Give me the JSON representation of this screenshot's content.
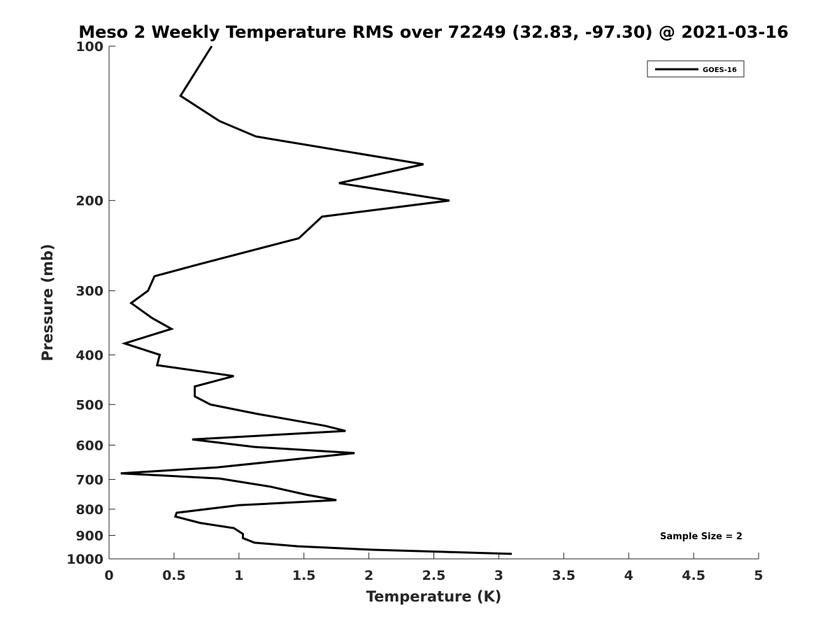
{
  "chart_data": {
    "type": "line",
    "title": "Meso 2 Weekly Temperature RMS over 72249 (32.83, -97.30) @ 2021-03-16",
    "xlabel": "Temperature (K)",
    "ylabel": "Pressure (mb)",
    "xlim": [
      0,
      5
    ],
    "ylim": [
      100,
      1000
    ],
    "y_scale": "log",
    "y_reversed": true,
    "x_ticks": [
      "0",
      "0.5",
      "1",
      "1.5",
      "2",
      "2.5",
      "3",
      "3.5",
      "4",
      "4.5",
      "5"
    ],
    "y_ticks": [
      "100",
      "200",
      "300",
      "400",
      "500",
      "600",
      "700",
      "800",
      "900",
      "1000"
    ],
    "grid": false,
    "legend_position": "top-right",
    "series": [
      {
        "name": "GOES-16",
        "color": "#000000",
        "points": [
          [
            0.79,
            100
          ],
          [
            0.55,
            125
          ],
          [
            0.85,
            140
          ],
          [
            1.13,
            150
          ],
          [
            2.42,
            170
          ],
          [
            1.77,
            185
          ],
          [
            2.62,
            200
          ],
          [
            1.64,
            215
          ],
          [
            1.46,
            237
          ],
          [
            0.7,
            266
          ],
          [
            0.35,
            281
          ],
          [
            0.3,
            300
          ],
          [
            0.17,
            317
          ],
          [
            0.33,
            339
          ],
          [
            0.48,
            356
          ],
          [
            0.12,
            380
          ],
          [
            0.39,
            400
          ],
          [
            0.37,
            419
          ],
          [
            0.96,
            440
          ],
          [
            0.66,
            461
          ],
          [
            0.66,
            482
          ],
          [
            0.78,
            500
          ],
          [
            1.13,
            521
          ],
          [
            1.66,
            550
          ],
          [
            1.82,
            563
          ],
          [
            0.64,
            585
          ],
          [
            1.12,
            605
          ],
          [
            1.89,
            622
          ],
          [
            1.29,
            645
          ],
          [
            0.83,
            663
          ],
          [
            0.09,
            681
          ],
          [
            0.85,
            697
          ],
          [
            1.24,
            723
          ],
          [
            1.52,
            750
          ],
          [
            1.75,
            768
          ],
          [
            1.0,
            786
          ],
          [
            0.52,
            813
          ],
          [
            0.51,
            827
          ],
          [
            0.7,
            851
          ],
          [
            0.96,
            871
          ],
          [
            1.03,
            894
          ],
          [
            1.03,
            911
          ],
          [
            1.12,
            930
          ],
          [
            1.45,
            945
          ],
          [
            2.03,
            960
          ],
          [
            3.1,
            978
          ]
        ]
      }
    ],
    "annotation": "Sample Size = 2"
  }
}
